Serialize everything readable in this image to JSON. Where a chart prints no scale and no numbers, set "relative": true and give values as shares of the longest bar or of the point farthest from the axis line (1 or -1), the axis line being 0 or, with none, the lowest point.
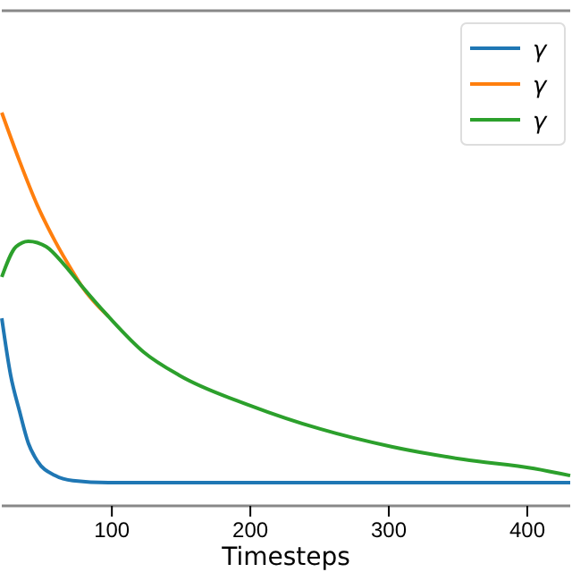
{
  "chart_data": {
    "type": "line",
    "relative": true,
    "xlabel": "Timesteps",
    "xlim": [
      20.5,
      431
    ],
    "xticks": [
      100,
      200,
      300,
      400
    ],
    "legend": "top right",
    "tick_labels": "x",
    "series": [
      {
        "name": "γ",
        "color": "#1f77b4",
        "x": [
          20.5,
          26.9,
          33.3,
          39.7,
          46.2,
          59,
          71.8,
          97.4,
          431
        ],
        "values": [
          0.477,
          0.332,
          0.241,
          0.159,
          0.114,
          0.077,
          0.064,
          0.059,
          0.059
        ]
      },
      {
        "name": "γ",
        "color": "#ff7f0e",
        "x": [
          20.5,
          33.3,
          46.2,
          59,
          71.8,
          78.2,
          97.4
        ],
        "values": [
          1.0,
          0.877,
          0.764,
          0.673,
          0.595,
          0.559,
          0.482
        ]
      },
      {
        "name": "γ",
        "color": "#2ca02c",
        "x": [
          20.5,
          30.8,
          39.7,
          52.6,
          65.4,
          78.2,
          97.4,
          123,
          148.7,
          200,
          251,
          302.6,
          354,
          405,
          431
        ],
        "values": [
          0.582,
          0.659,
          0.673,
          0.659,
          0.614,
          0.559,
          0.482,
          0.391,
          0.332,
          0.255,
          0.195,
          0.15,
          0.118,
          0.095,
          0.077
        ]
      }
    ]
  }
}
